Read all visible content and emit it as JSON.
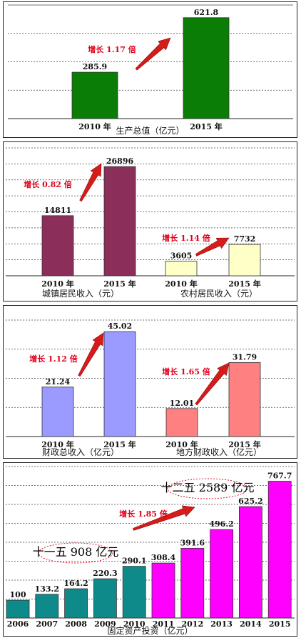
{
  "colors": {
    "p1_bar": "#0a7d06",
    "p2_left_bar": "#8b2f5a",
    "p2_right_bar": "#ffffc8",
    "p3_left_bar": "#9b9bff",
    "p3_right_bar": "#ff8080",
    "p4_early_bar": "#0e8a8a",
    "p4_late_bar": "#ff00ff",
    "growth_text": "#e0001a",
    "arrow": "#d61b1b"
  },
  "chart_data": [
    {
      "type": "bar",
      "categories": [
        "2010 年",
        "2015 年"
      ],
      "values": [
        285.9,
        621.8
      ],
      "value_labels": [
        "285.9",
        "621.8"
      ],
      "xlabel": "生产总值（亿元）",
      "ylim": [
        0,
        700
      ],
      "grid": true,
      "growth_label": "增长 1.17 倍"
    },
    {
      "type": "bar",
      "groups": [
        {
          "caption": "城镇居民收入（元）",
          "categories": [
            "2010 年",
            "2015 年"
          ],
          "values": [
            14811,
            26896
          ],
          "value_labels": [
            "14811",
            "26896"
          ],
          "growth_label": "增长 0.82 倍"
        },
        {
          "caption": "农村居民收入（元）",
          "categories": [
            "2010 年",
            "2015 年"
          ],
          "values": [
            3605,
            7732
          ],
          "value_labels": [
            "3605",
            "7732"
          ],
          "growth_label": "增长 1.14 倍"
        }
      ],
      "ylim": [
        0,
        31500
      ],
      "grid": true
    },
    {
      "type": "bar",
      "groups": [
        {
          "caption": "财政总收入（亿元）",
          "categories": [
            "2010 年",
            "2015 年"
          ],
          "values": [
            21.24,
            45.02
          ],
          "value_labels": [
            "21.24",
            "45.02"
          ],
          "growth_label": "增长 1.12 倍"
        },
        {
          "caption": "地方财政收入（亿元）",
          "categories": [
            "2010 年",
            "2015 年"
          ],
          "values": [
            12.01,
            31.79
          ],
          "value_labels": [
            "12.01",
            "31.79"
          ],
          "growth_label": "增长 1.65 倍"
        }
      ],
      "ylim": [
        0,
        50
      ],
      "grid": true
    },
    {
      "type": "bar",
      "categories": [
        "2006",
        "2007",
        "2008",
        "2009",
        "2010",
        "2011",
        "2012",
        "2013",
        "2014",
        "2015"
      ],
      "values": [
        100,
        133.2,
        164.2,
        220.3,
        290.1,
        308.4,
        391.6,
        496.2,
        625.2,
        767.7
      ],
      "value_labels": [
        "100",
        "133.2",
        "164.2",
        "220.3",
        "290.1",
        "308.4",
        "391.6",
        "496.2",
        "625.2",
        "767.7"
      ],
      "xlabel": "固定资产投资（亿元）",
      "ylim": [
        0,
        850
      ],
      "grid": true,
      "growth_label": "增长 1.85 倍",
      "ovals": [
        {
          "prefix": "十一五",
          "number": "908",
          "suffix": "亿元"
        },
        {
          "prefix": "十二五",
          "number": "2589",
          "suffix": "亿元"
        }
      ]
    }
  ]
}
